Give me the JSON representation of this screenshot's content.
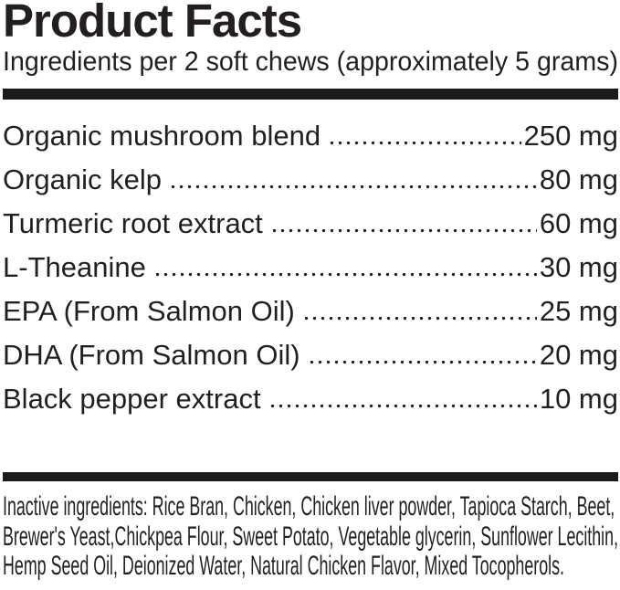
{
  "title": "Product Facts",
  "subtitle": "Ingredients per 2 soft chews (approximately 5 grams)",
  "ingredients": [
    {
      "name": "Organic mushroom blend",
      "amount": "250 mg"
    },
    {
      "name": "Organic kelp",
      "amount": "80 mg"
    },
    {
      "name": "Turmeric root extract",
      "amount": "60 mg"
    },
    {
      "name": "L-Theanine",
      "amount": "30 mg"
    },
    {
      "name": "EPA (From Salmon Oil)",
      "amount": "25 mg"
    },
    {
      "name": "DHA (From Salmon Oil)",
      "amount": "20 mg"
    },
    {
      "name": "Black pepper extract",
      "amount": "10 mg"
    }
  ],
  "inactive_lines": [
    "Inactive ingredients: Rice Bran, Chicken, Chicken liver powder, Tapioca Starch, Beet,",
    "Brewer's Yeast,Chickpea Flour, Sweet Potato, Vegetable glycerin, Sunflower Lecithin,",
    "Hemp Seed Oil, Deionized Water, Natural Chicken Flavor, Mixed Tocopherols."
  ],
  "colors": {
    "text": "#231f20",
    "bar": "#1d1a1b",
    "background": "#ffffff"
  }
}
